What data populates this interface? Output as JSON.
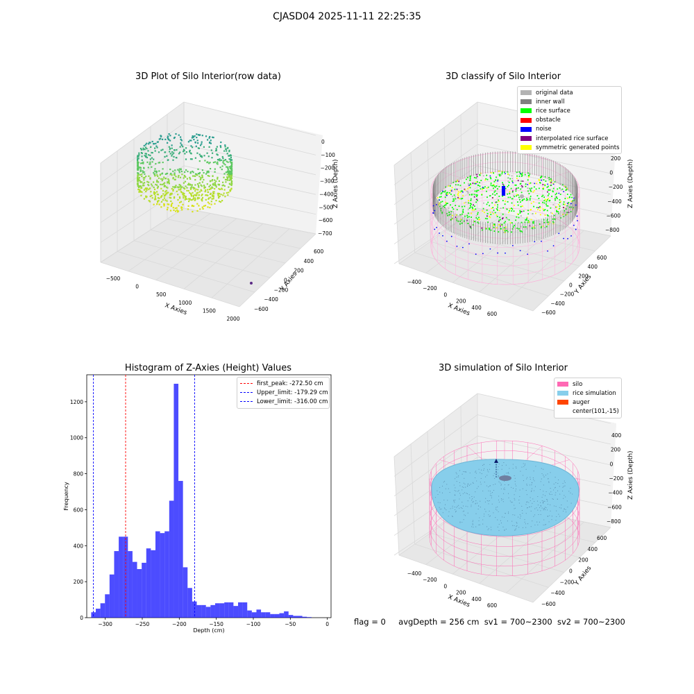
{
  "suptitle": "CJASD04 2025-11-11 22:25:35",
  "panel1": {
    "title": "3D Plot of Silo Interior(row data)",
    "xlabel": "X Axies",
    "ylabel": "Y Axies",
    "zlabel": "Z Axies (Depth)",
    "xticks": [
      "−500",
      "0",
      "500",
      "1000",
      "1500",
      "2000"
    ],
    "yticks": [
      "−600",
      "−400",
      "−200",
      "0",
      "200",
      "400",
      "600"
    ],
    "zticks": [
      "0",
      "−100",
      "−200",
      "−300",
      "−400",
      "−500",
      "−600",
      "−700"
    ]
  },
  "panel2": {
    "title": "3D classify of Silo Interior",
    "xlabel": "X Axies",
    "ylabel": "Y Axies",
    "zlabel": "Z Axies (Depth)",
    "xticks": [
      "−400",
      "−200",
      "0",
      "200",
      "400",
      "600"
    ],
    "yticks": [
      "−600",
      "−400",
      "−200",
      "0",
      "200",
      "400",
      "600"
    ],
    "zticks": [
      "200",
      "0",
      "−200",
      "−400",
      "−600",
      "−800"
    ],
    "zticks_partial": [
      "00",
      "00"
    ],
    "legend": [
      {
        "label": "original data",
        "color": "#b3b3b3"
      },
      {
        "label": "inner wall",
        "color": "#808080"
      },
      {
        "label": "rice surface",
        "color": "#00ff00"
      },
      {
        "label": "obstacle",
        "color": "#ff0000"
      },
      {
        "label": "noise",
        "color": "#0000ff"
      },
      {
        "label": "interpolated rice surface",
        "color": "#800080"
      },
      {
        "label": "symmetric generated points",
        "color": "#ffff00"
      }
    ]
  },
  "panel3": {
    "title": "Histogram of Z-Axies (Height) Values",
    "legend": [
      {
        "label": "first_peak: -272.50 cm",
        "color": "#ff0000"
      },
      {
        "label": "Upper_limit: -179.29 cm",
        "color": "#0000ff"
      },
      {
        "label": "Lower_limit: -316.00 cm",
        "color": "#0000ff"
      }
    ]
  },
  "panel4": {
    "title": "3D simulation of Silo Interior",
    "xlabel": "X Axies",
    "ylabel": "Y Axies",
    "zlabel": "Z Axies (Depth)",
    "xticks": [
      "−400",
      "−200",
      "0",
      "200",
      "400",
      "600"
    ],
    "yticks": [
      "−600",
      "−400",
      "−200",
      "0",
      "200",
      "400",
      "600"
    ],
    "zticks": [
      "400",
      "200",
      "0",
      "−200",
      "−400",
      "−600",
      "−800"
    ],
    "legend": [
      {
        "label": "silo",
        "color": "#ff69b4"
      },
      {
        "label": "rice simulation",
        "color": "#87ceeb"
      },
      {
        "label": "auger",
        "color": "#ff4500"
      },
      {
        "label": "center(101,-15)",
        "color": ""
      }
    ]
  },
  "status": {
    "flag": "flag = 0",
    "avg_depth": "avgDepth = 256 cm",
    "sv1": "sv1 = 700~2300",
    "sv2": "sv2 = 700~2300"
  },
  "chart_data": [
    {
      "type": "scatter",
      "title": "3D Plot of Silo Interior(row data)",
      "projection": "3d",
      "xlabel": "X Axies",
      "ylabel": "Y Axies",
      "zlabel": "Z Axies (Depth)",
      "xlim": [
        -650,
        2050
      ],
      "ylim": [
        -650,
        650
      ],
      "zlim": [
        -720,
        30
      ],
      "grid": true
    },
    {
      "type": "scatter",
      "title": "3D classify of Silo Interior",
      "projection": "3d",
      "xlabel": "X Axies",
      "ylabel": "Y Axies",
      "zlabel": "Z Axies (Depth)",
      "xlim": [
        -450,
        700
      ],
      "ylim": [
        -650,
        650
      ],
      "zlim": [
        -900,
        300
      ],
      "legend_position": "top-right",
      "grid": true
    },
    {
      "type": "bar",
      "title": "Histogram of Z-Axies (Height) Values",
      "xlabel": "Depth (cm)",
      "ylabel": "Frequency",
      "xlim": [
        -325,
        5
      ],
      "ylim": [
        0,
        1350
      ],
      "xticks": [
        -300,
        -250,
        -200,
        -150,
        -100,
        -50,
        0
      ],
      "yticks": [
        0,
        200,
        400,
        600,
        800,
        1000,
        1200
      ],
      "bin_start": -319,
      "bin_width": 6.2,
      "values": [
        30,
        50,
        80,
        130,
        240,
        370,
        450,
        450,
        370,
        310,
        270,
        305,
        385,
        375,
        480,
        470,
        480,
        650,
        1300,
        760,
        280,
        165,
        90,
        70,
        70,
        60,
        70,
        80,
        80,
        85,
        85,
        65,
        85,
        85,
        40,
        30,
        45,
        30,
        30,
        20,
        20,
        25,
        35,
        15,
        10,
        10,
        5,
        3
      ],
      "bar_color": "#0000ff",
      "vlines": [
        {
          "x": -272.5,
          "color": "#ff0000",
          "label": "first_peak: -272.50 cm"
        },
        {
          "x": -179.29,
          "color": "#0000ff",
          "label": "Upper_limit: -179.29 cm"
        },
        {
          "x": -316.0,
          "color": "#0000ff",
          "label": "Lower_limit: -316.00 cm"
        }
      ],
      "legend_position": "top-right"
    },
    {
      "type": "scatter",
      "title": "3D simulation of Silo Interior",
      "projection": "3d",
      "xlabel": "X Axies",
      "ylabel": "Y Axies",
      "zlabel": "Z Axies (Depth)",
      "xlim": [
        -450,
        700
      ],
      "ylim": [
        -650,
        650
      ],
      "zlim": [
        -900,
        450
      ],
      "legend_position": "top-right",
      "grid": true
    }
  ]
}
